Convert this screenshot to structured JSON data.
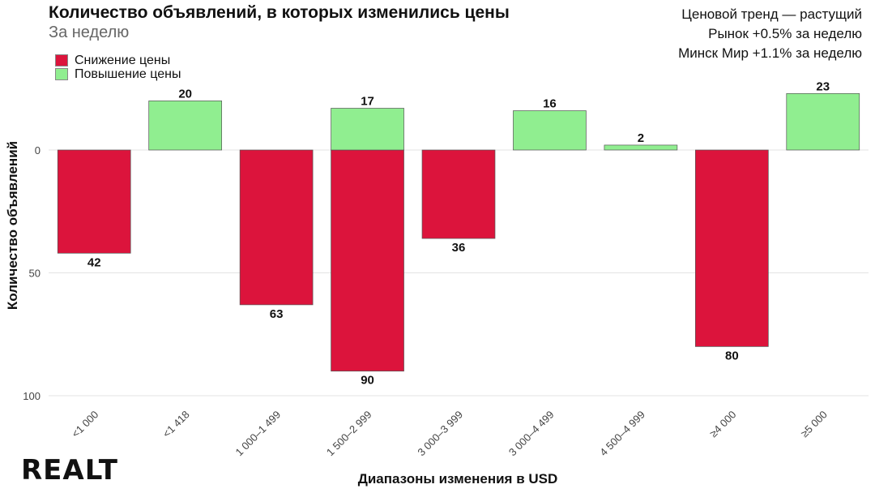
{
  "title": "Количество объявлений, в которых изменились цены",
  "subtitle": "За неделю",
  "notes": [
    "Ценовой тренд — растущий",
    "Рынок +0.5% за неделю",
    "Минск Мир +1.1% за неделю"
  ],
  "logo": "REALT",
  "colors": {
    "decrease": "#dc143c",
    "increase": "#90ee90"
  },
  "chart_data": {
    "type": "bar",
    "xlabel": "Диапазоны изменения в USD",
    "ylabel": "Количество объявлений",
    "y_axis_inverted": true,
    "ylim": [
      -23,
      100
    ],
    "y_ticks": [
      0,
      50,
      100
    ],
    "grid": true,
    "legend_position": "top-left",
    "categories": [
      "<1 000",
      "<1 418",
      "1 000–1 499",
      "1 500–2 999",
      "3 000–3 999",
      "3 000–4 499",
      "4 500–4 999",
      "≥4 000",
      "≥5 000"
    ],
    "series": [
      {
        "name": "Снижение цены",
        "values": [
          42,
          null,
          63,
          90,
          36,
          null,
          null,
          80,
          null
        ]
      },
      {
        "name": "Повышение цены",
        "values": [
          null,
          20,
          null,
          17,
          null,
          16,
          2,
          null,
          23
        ]
      }
    ]
  }
}
